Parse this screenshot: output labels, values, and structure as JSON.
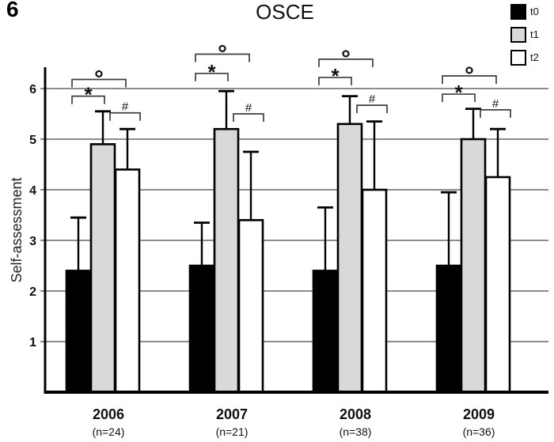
{
  "figure_label": "6",
  "chart_data": {
    "type": "bar",
    "title": "OSCE",
    "ylabel": "Self-assessment",
    "ylim": [
      0,
      6.42
    ],
    "yticks": [
      1,
      2,
      3,
      4,
      5,
      6
    ],
    "grid": true,
    "legend_position": "top-right",
    "categories": [
      "2006",
      "2007",
      "2008",
      "2009"
    ],
    "category_sublabels": [
      "(n=24)",
      "(n=21)",
      "(n=38)",
      "(n=36)"
    ],
    "series": [
      {
        "name": "t0",
        "fill": "#000000",
        "values": [
          2.4,
          2.5,
          2.4,
          2.5
        ],
        "error_tops": [
          3.45,
          3.35,
          3.65,
          3.95
        ]
      },
      {
        "name": "t1",
        "fill": "#d9d9d9",
        "values": [
          4.9,
          5.2,
          5.3,
          5.0
        ],
        "error_tops": [
          5.55,
          5.95,
          5.85,
          5.6
        ]
      },
      {
        "name": "t2",
        "fill": "#ffffff",
        "values": [
          4.4,
          3.4,
          4.0,
          4.25
        ],
        "error_tops": [
          5.2,
          4.75,
          5.35,
          5.2
        ]
      }
    ],
    "significance_brackets": [
      {
        "group": "2006",
        "symbol": "°",
        "from": "t0",
        "to": "t2",
        "level": 6.18
      },
      {
        "group": "2006",
        "symbol": "*",
        "from": "t0",
        "to": "t1",
        "level": 5.85
      },
      {
        "group": "2006",
        "symbol": "#",
        "from": "t1",
        "to": "t2",
        "level": 5.52
      },
      {
        "group": "2007",
        "symbol": "°",
        "from": "t0",
        "to": "t2",
        "level": 6.68
      },
      {
        "group": "2007",
        "symbol": "*",
        "from": "t0",
        "to": "t1",
        "level": 6.3
      },
      {
        "group": "2007",
        "symbol": "#",
        "from": "t1",
        "to": "t2",
        "level": 5.5
      },
      {
        "group": "2008",
        "symbol": "°",
        "from": "t0",
        "to": "t2",
        "level": 6.58
      },
      {
        "group": "2008",
        "symbol": "*",
        "from": "t0",
        "to": "t1",
        "level": 6.22
      },
      {
        "group": "2008",
        "symbol": "#",
        "from": "t1",
        "to": "t2",
        "level": 5.67
      },
      {
        "group": "2009",
        "symbol": "°",
        "from": "t0",
        "to": "t2",
        "level": 6.25
      },
      {
        "group": "2009",
        "symbol": "*",
        "from": "t0",
        "to": "t1",
        "level": 5.89
      },
      {
        "group": "2009",
        "symbol": "#",
        "from": "t1",
        "to": "t2",
        "level": 5.58
      }
    ],
    "colors": {
      "grid": "#7d7d7d",
      "axis": "#000000",
      "bar_border": "#000000",
      "error_bar": "#000000",
      "bracket": "#3d3d3d"
    }
  }
}
